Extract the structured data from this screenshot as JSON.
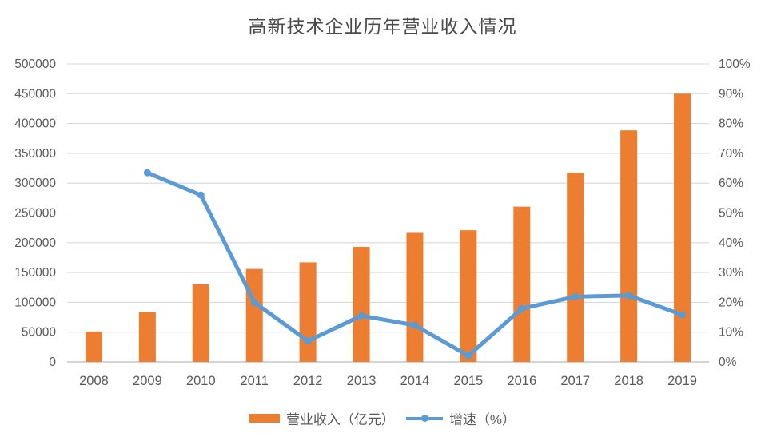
{
  "title": "高新技术企业历年营业收入情况",
  "colors": {
    "bar": "#ED7D31",
    "line": "#5B9BD5",
    "grid": "#D9D9D9",
    "axis_line": "#C6C6C6",
    "axis_text": "#595959",
    "title_text": "#4a4a4a",
    "background": "#FFFFFF"
  },
  "legend": {
    "items": [
      {
        "label": "营业收入（亿元）",
        "swatch": "bar-swatch"
      },
      {
        "label": "增速（%）",
        "swatch": "line-swatch"
      }
    ]
  },
  "chart_data": {
    "type": "combo-bar-line",
    "title": "高新技术企业历年营业收入情况",
    "categories": [
      "2008",
      "2009",
      "2010",
      "2011",
      "2012",
      "2013",
      "2014",
      "2015",
      "2016",
      "2017",
      "2018",
      "2019"
    ],
    "series": [
      {
        "name": "营业收入（亿元）",
        "type": "bar",
        "axis": "left",
        "color": "#ED7D31",
        "values": [
          51000,
          83500,
          130000,
          156000,
          167000,
          193000,
          216500,
          221000,
          260500,
          317500,
          388500,
          450000
        ]
      },
      {
        "name": "增速（%）",
        "type": "line",
        "axis": "right",
        "color": "#5B9BD5",
        "values": [
          null,
          63.5,
          56.0,
          20.0,
          7.0,
          15.5,
          12.3,
          2.1,
          17.9,
          21.9,
          22.3,
          15.8
        ]
      }
    ],
    "left_axis": {
      "min": 0,
      "max": 500000,
      "step": 50000,
      "labels": [
        "0",
        "50000",
        "100000",
        "150000",
        "200000",
        "250000",
        "300000",
        "350000",
        "400000",
        "450000",
        "500000"
      ]
    },
    "right_axis": {
      "min": 0,
      "max": 100,
      "step": 10,
      "labels": [
        "0%",
        "10%",
        "20%",
        "30%",
        "40%",
        "50%",
        "60%",
        "70%",
        "80%",
        "90%",
        "100%"
      ]
    },
    "grid": true,
    "legend_position": "bottom"
  }
}
